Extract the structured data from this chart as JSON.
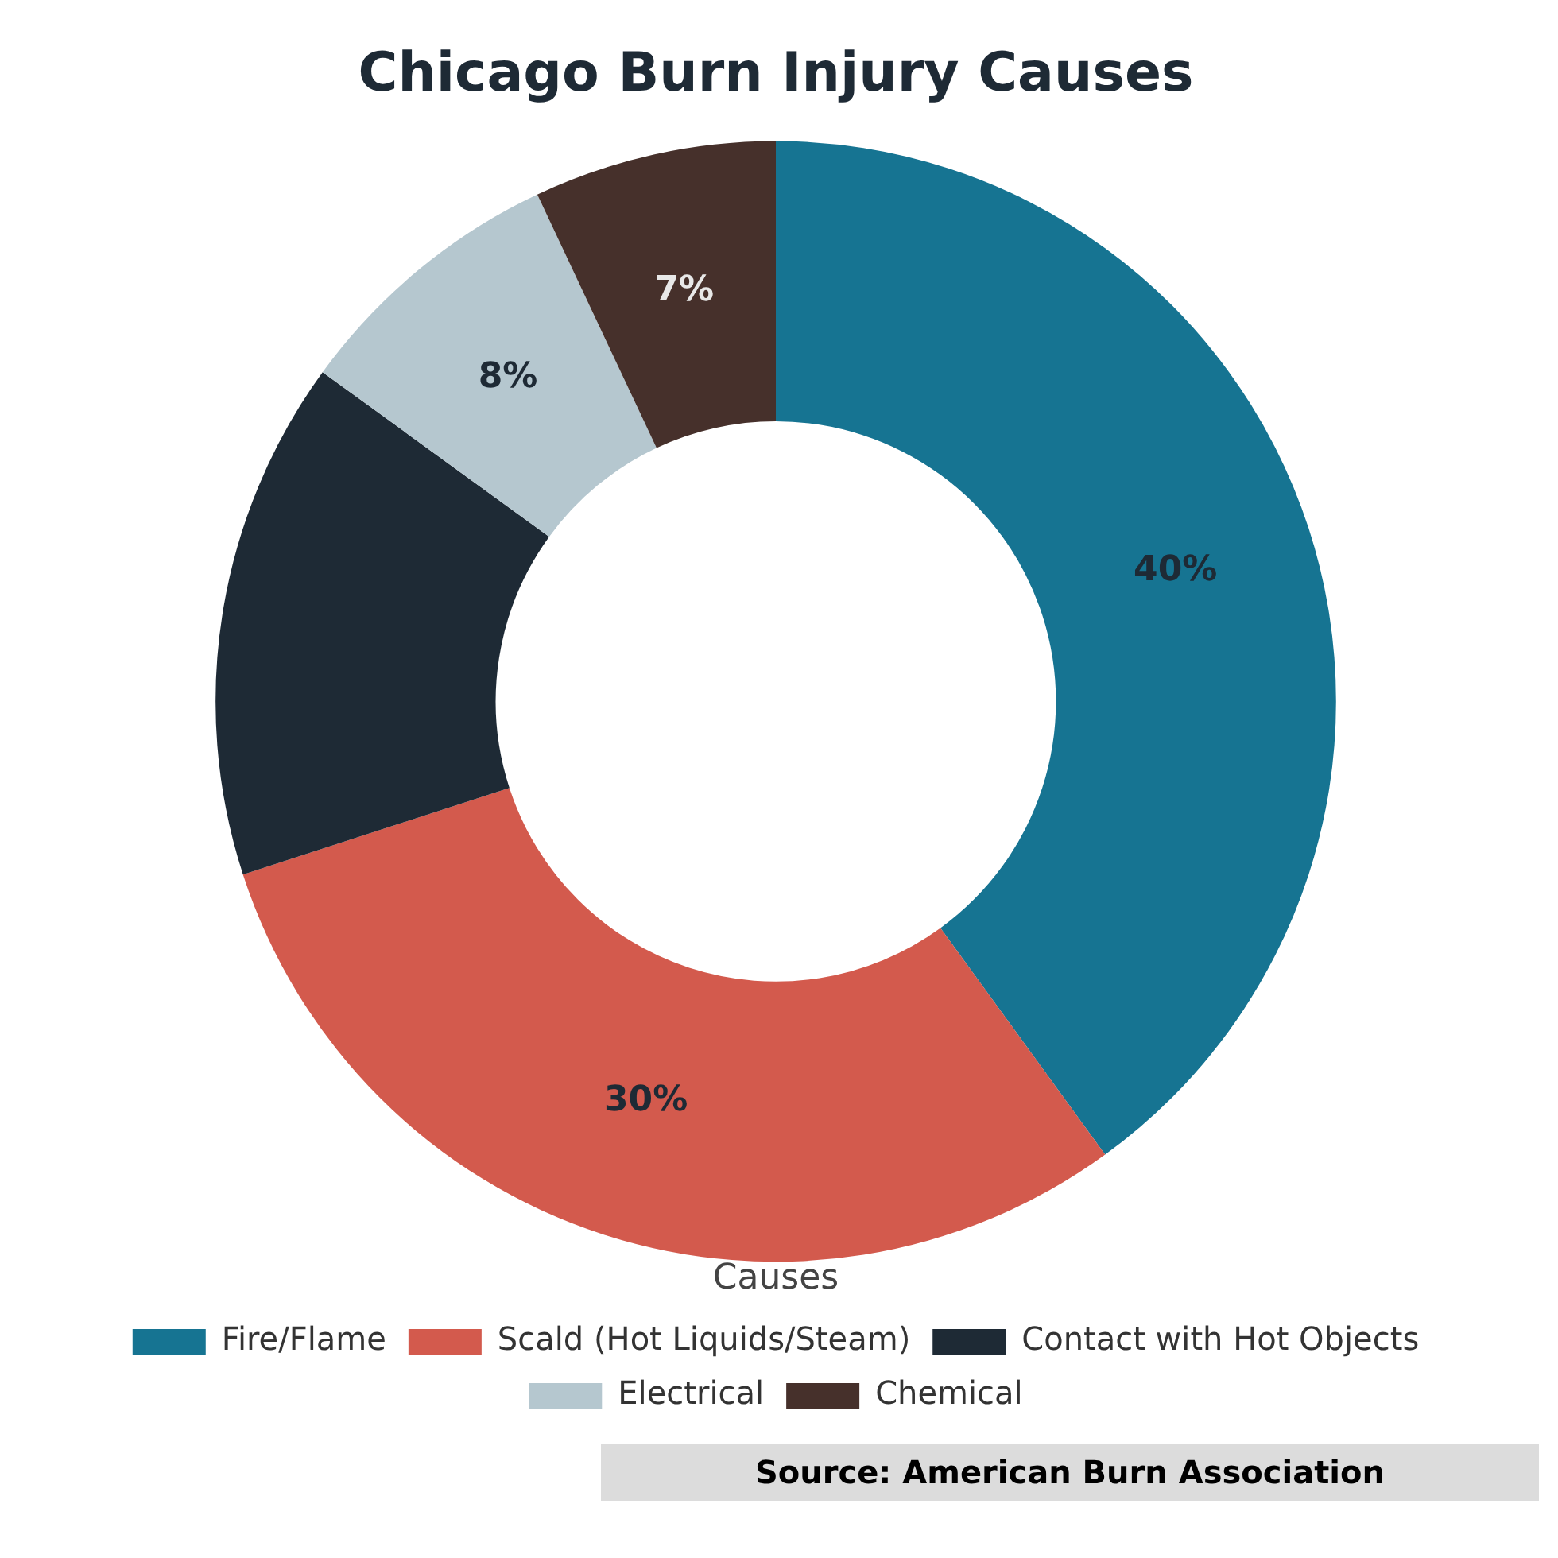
{
  "chart_data": {
    "type": "donut",
    "title": "Chicago Burn Injury Causes",
    "legend_title": "Causes",
    "legend": "bottom",
    "categories": [
      "Fire/Flame",
      "Scald (Hot Liquids/Steam)",
      "Contact with Hot Objects",
      "Electrical",
      "Chemical"
    ],
    "values": [
      40,
      30,
      15,
      8,
      7
    ],
    "value_labels": [
      "40%",
      "30%",
      null,
      "8%",
      "7%"
    ],
    "colors": [
      "#167492",
      "#d35a4d",
      "#1e2a35",
      "#b5c7cf",
      "#46302b"
    ],
    "annotations": [
      "Source: American Burn Association"
    ]
  }
}
